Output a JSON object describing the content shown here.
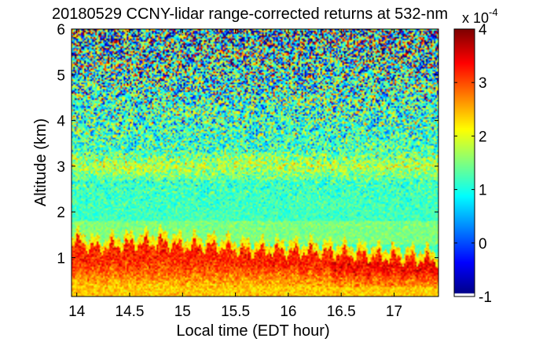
{
  "chart_data": {
    "type": "heatmap",
    "title": "20180529 CCNY-lidar range-corrected returns at 532-nm",
    "xlabel": "Local time (EDT hour)",
    "ylabel": "Altitude (km)",
    "xlim": [
      13.95,
      17.42
    ],
    "ylim": [
      0.15,
      6.0
    ],
    "xticks": [
      "14",
      "14.5",
      "15",
      "15.5",
      "16",
      "16.5",
      "17"
    ],
    "yticks": [
      "1",
      "2",
      "3",
      "4",
      "5",
      "6"
    ],
    "colorbar": {
      "label": "",
      "exponent_label": "x 10",
      "exponent": "-4",
      "ticks": [
        "-1",
        "0",
        "1",
        "2",
        "3",
        "4"
      ],
      "range": [
        -1,
        4
      ],
      "colormap": "jet"
    },
    "series": [
      {
        "description_values_x1e-4": true,
        "boundary_layer_top_km": [
          {
            "x": 14.0,
            "y": 1.35
          },
          {
            "x": 14.2,
            "y": 1.2
          },
          {
            "x": 14.5,
            "y": 1.3
          },
          {
            "x": 14.8,
            "y": 1.35
          },
          {
            "x": 15.0,
            "y": 1.25
          },
          {
            "x": 15.3,
            "y": 1.25
          },
          {
            "x": 15.6,
            "y": 1.15
          },
          {
            "x": 16.0,
            "y": 1.15
          },
          {
            "x": 16.5,
            "y": 1.1
          },
          {
            "x": 17.0,
            "y": 1.0
          },
          {
            "x": 17.4,
            "y": 0.95
          }
        ],
        "boundary_layer_value": 3.2,
        "near_surface_value": 2.4,
        "free_troposphere_value": 1.2,
        "aerosol_layer_3km_value": 1.8,
        "upper_noise_std": 1.6
      }
    ]
  }
}
